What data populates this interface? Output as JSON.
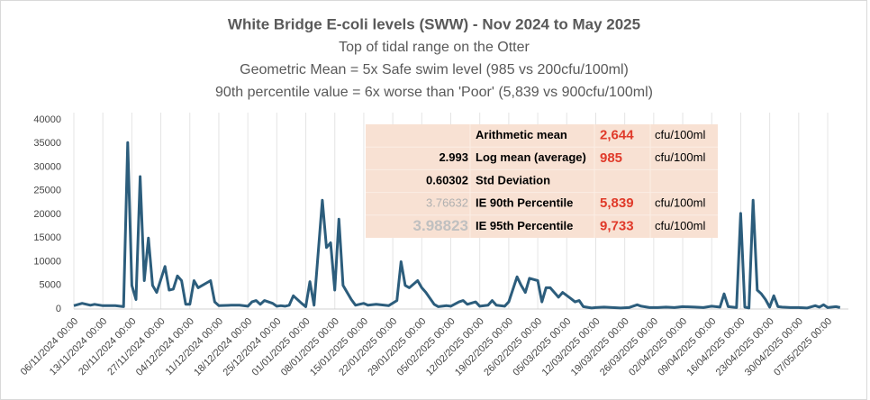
{
  "chart_data": {
    "type": "line",
    "title": "White Bridge E-coli levels (SWW) - Nov 2024 to May 2025",
    "subtitles": [
      "Top of tidal range on the Otter",
      "Geometric Mean = 5x Safe swim level (985 vs 200cfu/100ml)",
      "90th percentile value = 6x worse than 'Poor' (5,839 vs 900cfu/100ml)"
    ],
    "color": "#2c5d7c",
    "grid": "x",
    "x": [
      "2024-11-06",
      "2024-11-08",
      "2024-11-10",
      "2024-11-11",
      "2024-11-13",
      "2024-11-16",
      "2024-11-18",
      "2024-11-19",
      "2024-11-20",
      "2024-11-21",
      "2024-11-22",
      "2024-11-23",
      "2024-11-24",
      "2024-11-25",
      "2024-11-26",
      "2024-11-28",
      "2024-11-29",
      "2024-11-30",
      "2024-12-01",
      "2024-12-02",
      "2024-12-03",
      "2024-12-04",
      "2024-12-05",
      "2024-12-06",
      "2024-12-09",
      "2024-12-10",
      "2024-12-11",
      "2024-12-14",
      "2024-12-16",
      "2024-12-18",
      "2024-12-19",
      "2024-12-20",
      "2024-12-21",
      "2024-12-22",
      "2024-12-24",
      "2024-12-25",
      "2024-12-26",
      "2024-12-27",
      "2024-12-28",
      "2024-12-29",
      "2024-12-31",
      "2025-01-01",
      "2025-01-02",
      "2025-01-03",
      "2025-01-05",
      "2025-01-06",
      "2025-01-07",
      "2025-01-08",
      "2025-01-09",
      "2025-01-10",
      "2025-01-12",
      "2025-01-13",
      "2025-01-15",
      "2025-01-16",
      "2025-01-18",
      "2025-01-21",
      "2025-01-23",
      "2025-01-24",
      "2025-01-25",
      "2025-01-26",
      "2025-01-28",
      "2025-01-29",
      "2025-01-30",
      "2025-02-01",
      "2025-02-02",
      "2025-02-04",
      "2025-02-05",
      "2025-02-07",
      "2025-02-08",
      "2025-02-09",
      "2025-02-11",
      "2025-02-12",
      "2025-02-14",
      "2025-02-15",
      "2025-02-16",
      "2025-02-18",
      "2025-02-19",
      "2025-02-21",
      "2025-02-22",
      "2025-02-23",
      "2025-02-24",
      "2025-02-26",
      "2025-02-27",
      "2025-02-28",
      "2025-03-01",
      "2025-03-02",
      "2025-03-03",
      "2025-03-04",
      "2025-03-06",
      "2025-03-07",
      "2025-03-08",
      "2025-03-09",
      "2025-03-11",
      "2025-03-12",
      "2025-03-14",
      "2025-03-16",
      "2025-03-18",
      "2025-03-20",
      "2025-03-22",
      "2025-03-23",
      "2025-03-25",
      "2025-03-27",
      "2025-03-29",
      "2025-03-31",
      "2025-04-02",
      "2025-04-05",
      "2025-04-07",
      "2025-04-09",
      "2025-04-11",
      "2025-04-12",
      "2025-04-13",
      "2025-04-15",
      "2025-04-16",
      "2025-04-17",
      "2025-04-18",
      "2025-04-19",
      "2025-04-20",
      "2025-04-21",
      "2025-04-22",
      "2025-04-23",
      "2025-04-24",
      "2025-04-25",
      "2025-04-26",
      "2025-04-28",
      "2025-04-30",
      "2025-05-02",
      "2025-05-04",
      "2025-05-05",
      "2025-05-06",
      "2025-05-07",
      "2025-05-09",
      "2025-05-10"
    ],
    "values": [
      700,
      1200,
      800,
      1000,
      700,
      700,
      500,
      35200,
      5000,
      2000,
      28000,
      6000,
      15000,
      5000,
      3500,
      9000,
      4000,
      4200,
      7000,
      6000,
      1000,
      1000,
      6000,
      4500,
      6000,
      1500,
      700,
      800,
      800,
      600,
      1500,
      1800,
      1000,
      1800,
      1200,
      600,
      700,
      600,
      800,
      2800,
      1200,
      500,
      5800,
      800,
      23000,
      13000,
      14000,
      4000,
      19000,
      5000,
      2000,
      800,
      1200,
      800,
      1000,
      700,
      1800,
      10000,
      5000,
      4500,
      6000,
      4500,
      3500,
      1000,
      500,
      700,
      600,
      1500,
      1800,
      1000,
      1500,
      600,
      800,
      1800,
      800,
      600,
      1500,
      6800,
      5000,
      3500,
      6500,
      6000,
      1500,
      4500,
      4500,
      3500,
      2500,
      3500,
      2200,
      1500,
      1800,
      500,
      200,
      300,
      400,
      300,
      200,
      300,
      900,
      600,
      300,
      300,
      400,
      300,
      500,
      400,
      300,
      600,
      400,
      3200,
      500,
      300,
      20200,
      400,
      200,
      23000,
      4000,
      3200,
      2000,
      400,
      2800,
      500,
      400,
      300,
      300,
      200,
      700,
      400,
      900,
      300,
      500,
      300
    ],
    "xlim": [
      "2024-11-06",
      "2025-05-12"
    ],
    "xticks": [
      {
        "value": "2024-11-06",
        "label": "06/11/2024 00:00"
      },
      {
        "value": "2024-11-13",
        "label": "13/11/2024 00:00"
      },
      {
        "value": "2024-11-20",
        "label": "20/11/2024 00:00"
      },
      {
        "value": "2024-11-27",
        "label": "27/11/2024 00:00"
      },
      {
        "value": "2024-12-04",
        "label": "04/12/2024 00:00"
      },
      {
        "value": "2024-12-11",
        "label": "11/12/2024 00:00"
      },
      {
        "value": "2024-12-18",
        "label": "18/12/2024 00:00"
      },
      {
        "value": "2024-12-25",
        "label": "25/12/2024 00:00"
      },
      {
        "value": "2025-01-01",
        "label": "01/01/2025 00:00"
      },
      {
        "value": "2025-01-08",
        "label": "08/01/2025 00:00"
      },
      {
        "value": "2025-01-15",
        "label": "15/01/2025 00:00"
      },
      {
        "value": "2025-01-22",
        "label": "22/01/2025 00:00"
      },
      {
        "value": "2025-01-29",
        "label": "29/01/2025 00:00"
      },
      {
        "value": "2025-02-05",
        "label": "05/02/2025 00:00"
      },
      {
        "value": "2025-02-12",
        "label": "12/02/2025 00:00"
      },
      {
        "value": "2025-02-19",
        "label": "19/02/2025 00:00"
      },
      {
        "value": "2025-02-26",
        "label": "26/02/2025 00:00"
      },
      {
        "value": "2025-03-05",
        "label": "05/03/2025 00:00"
      },
      {
        "value": "2025-03-12",
        "label": "12/03/2025 00:00"
      },
      {
        "value": "2025-03-19",
        "label": "19/03/2025 00:00"
      },
      {
        "value": "2025-03-26",
        "label": "26/03/2025 00:00"
      },
      {
        "value": "2025-04-02",
        "label": "02/04/2025 00:00"
      },
      {
        "value": "2025-04-09",
        "label": "09/04/2025 00:00"
      },
      {
        "value": "2025-04-16",
        "label": "16/04/2025 00:00"
      },
      {
        "value": "2025-04-23",
        "label": "23/04/2025 00:00"
      },
      {
        "value": "2025-04-30",
        "label": "30/04/2025 00:00"
      },
      {
        "value": "2025-05-07",
        "label": "07/05/2025 00:00"
      }
    ],
    "ylim": [
      0,
      40000
    ],
    "yticks": [
      0,
      5000,
      10000,
      15000,
      20000,
      25000,
      30000,
      35000,
      40000
    ],
    "stats": [
      {
        "label": "Arithmetic mean",
        "value": "2,644",
        "unit": "cfu/100ml"
      },
      {
        "log": "2.993",
        "label": "Log mean (average)",
        "value": "985",
        "unit": "cfu/100ml"
      },
      {
        "log": "0.60302",
        "label": "Std Deviation"
      },
      {
        "log": "3.76632",
        "label": "IE 90th Percentile",
        "value": "5,839",
        "unit": "cfu/100ml"
      },
      {
        "log": "3.98823",
        "label": "IE 95th Percentile",
        "value": "9,733",
        "unit": "cfu/100ml"
      }
    ]
  }
}
